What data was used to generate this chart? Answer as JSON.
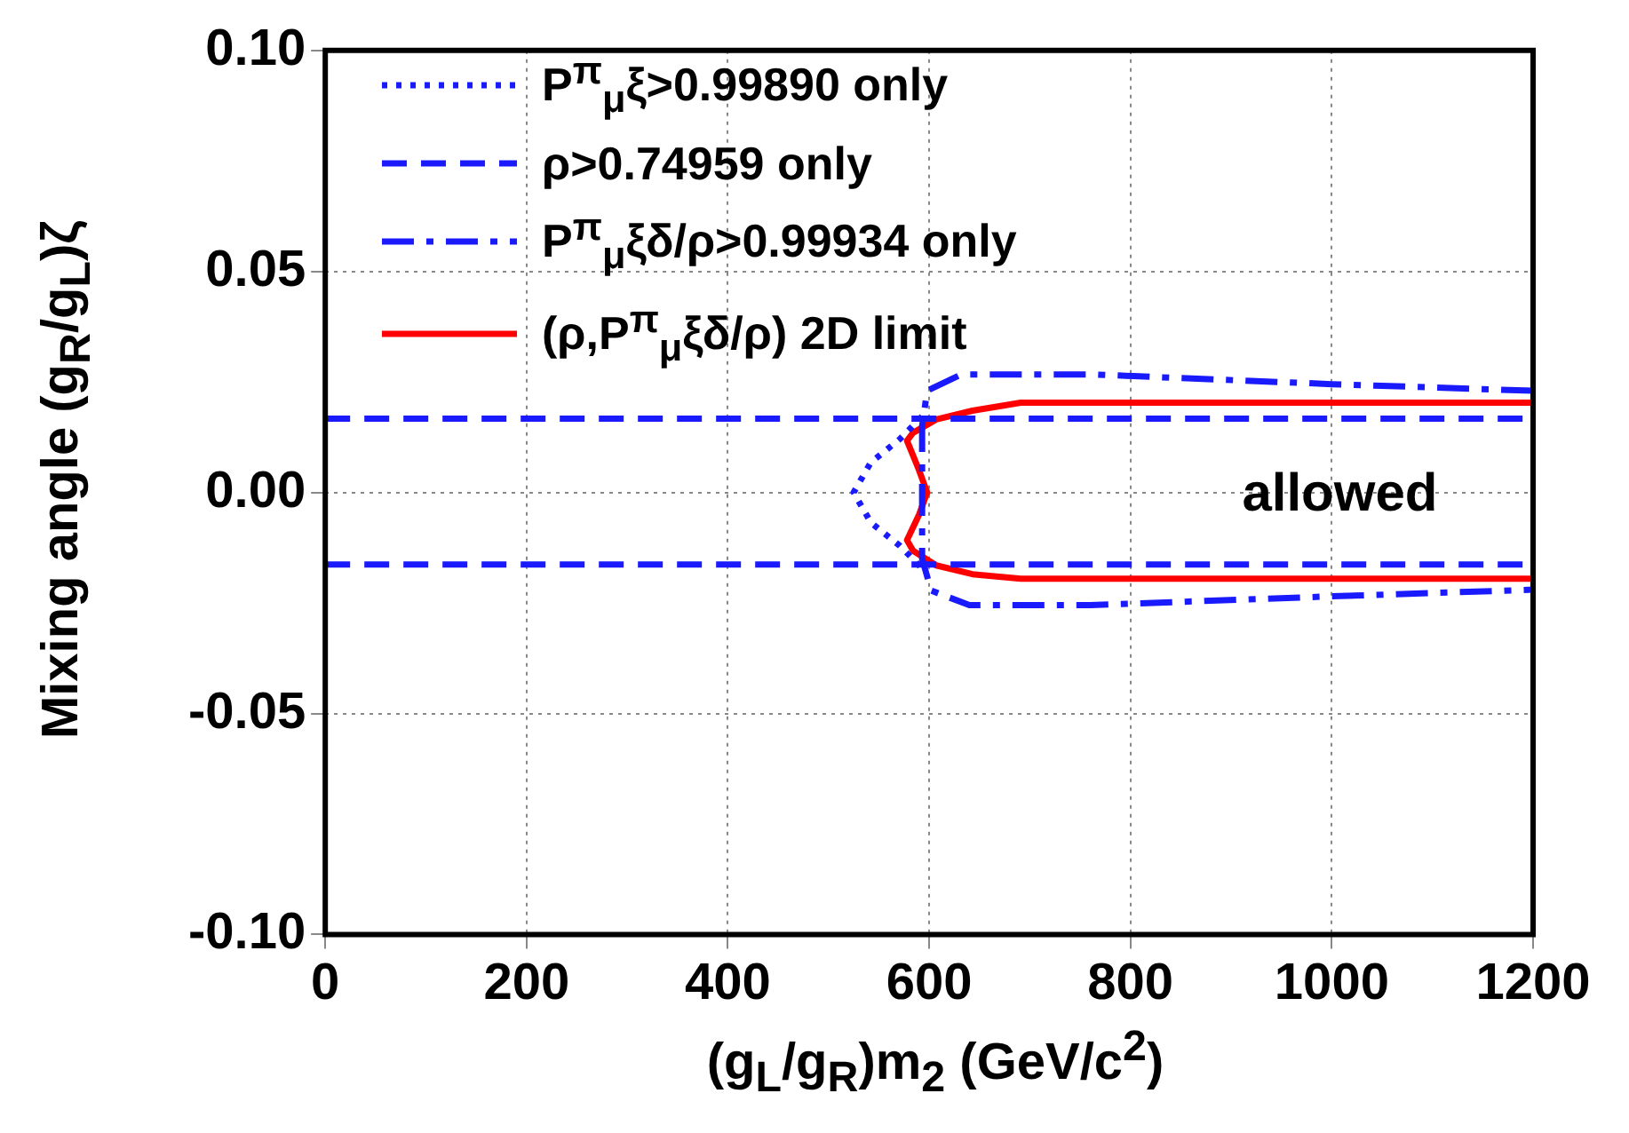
{
  "chart_data": {
    "type": "line",
    "xlabel": "(g$_{L}$/g$_{R}$)m$_{2}$ (GeV/c$^{2}$)",
    "ylabel": "Mixing angle (g$_{R}$/g$_{L}$)ζ",
    "xlim": [
      0,
      1200
    ],
    "ylim": [
      -0.1,
      0.1
    ],
    "xticks": [
      0,
      200,
      400,
      600,
      800,
      1000,
      1200
    ],
    "yticks": [
      {
        "value": -0.1,
        "label": "-0.10"
      },
      {
        "value": -0.05,
        "label": "-0.05"
      },
      {
        "value": 0,
        "label": "0.00"
      },
      {
        "value": 0.05,
        "label": "0.05"
      },
      {
        "value": 0.1,
        "label": "0.10"
      }
    ],
    "grid": true,
    "legend": "top left",
    "marker": "none",
    "annotations": [
      "allowed"
    ],
    "series": [
      {
        "name": "P$^{π}$$_{μ}$ξ>0.99890 only",
        "color": "#1a1aff",
        "line_style": "dotted",
        "x": [
          593,
          571,
          542,
          525,
          542,
          571,
          593
        ],
        "values": [
          0.0172,
          0.0121,
          0.0068,
          0.0,
          -0.0068,
          -0.0121,
          -0.0172
        ]
      },
      {
        "name": "ρ>0.74959 only",
        "color": "#1a1aff",
        "line_style": "dashed",
        "x": [
          0,
          1200
        ],
        "values": [
          0.0167,
          0.0167
        ]
      },
      {
        "color": "#1a1aff",
        "line_style": "dashed",
        "x": [
          0,
          1200
        ],
        "values": [
          -0.0163,
          -0.0163
        ]
      },
      {
        "name": "P$^{π}$$_{μ}$ξδ/ρ>0.99934 only",
        "color": "#1a1aff",
        "line_style": "dashdot",
        "x": [
          1200,
          1000,
          762,
          632,
          598,
          593,
          593,
          602,
          640,
          760,
          1000,
          1200
        ],
        "values": [
          0.023,
          0.0245,
          0.0267,
          0.0267,
          0.023,
          0.015,
          -0.015,
          -0.0222,
          -0.0255,
          -0.0255,
          -0.0235,
          -0.022
        ]
      },
      {
        "name": "(ρ,P$^{π}$$_{μ}$ξδ/ρ) 2D limit",
        "color": "#ff0000",
        "line_style": "solid",
        "x": [
          1200,
          691,
          643,
          607,
          584,
          578,
          590,
          598,
          590,
          578,
          584,
          607,
          643,
          691,
          1200
        ],
        "values": [
          0.0203,
          0.0203,
          0.0185,
          0.0165,
          0.0135,
          0.0117,
          0.005,
          0.0,
          -0.005,
          -0.0108,
          -0.0132,
          -0.0165,
          -0.0185,
          -0.0195,
          -0.0195
        ]
      }
    ]
  }
}
